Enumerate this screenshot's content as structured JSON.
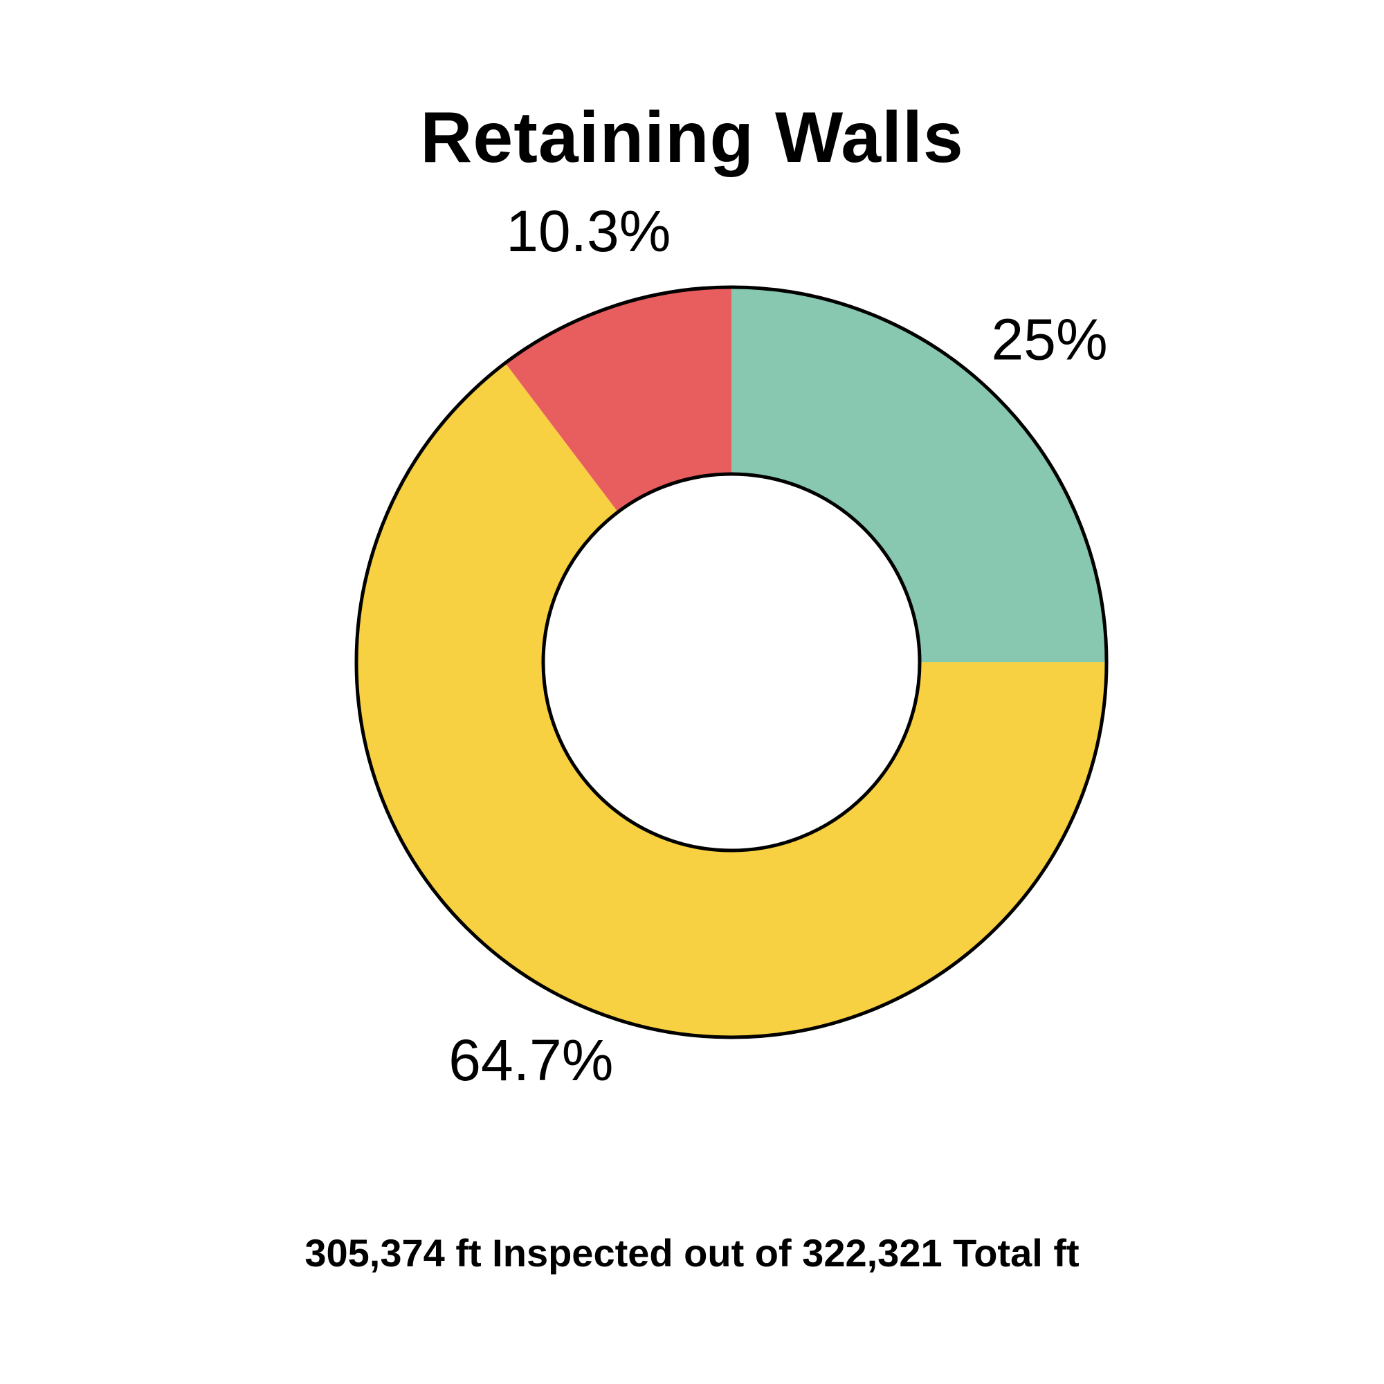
{
  "chart_data": {
    "type": "pie",
    "title": "Retaining Walls",
    "subtitle": "305,374 ft Inspected out of 322,321 Total ft",
    "slices": [
      {
        "label": "25%",
        "value": 25.0,
        "color": "#88C8B0"
      },
      {
        "label": "64.7%",
        "value": 64.7,
        "color": "#F8D142"
      },
      {
        "label": "10.3%",
        "value": 10.3,
        "color": "#E85E5E"
      }
    ],
    "donut": true,
    "legend": "none"
  }
}
